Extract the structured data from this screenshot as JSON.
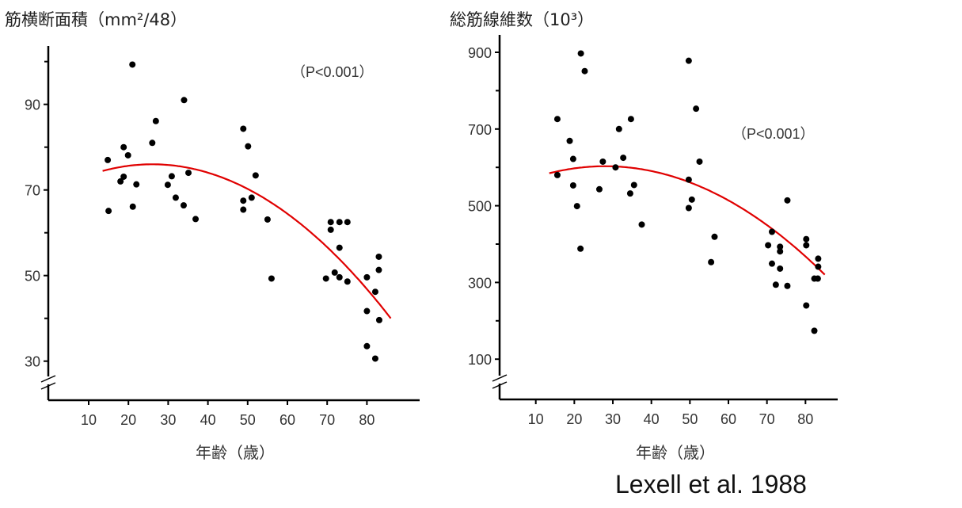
{
  "citation": "Lexell et al. 1988",
  "colors": {
    "points": "#000000",
    "fit": "#e00000",
    "axis": "#000000"
  },
  "chart_data": [
    {
      "type": "scatter",
      "title": "筋横断面積（mm²/48）",
      "xlabel": "年齢（歳）",
      "ylabel": "筋横断面積（mm²/48）",
      "annotation": "（P<0.001）",
      "xlim": [
        0,
        88
      ],
      "ylim": [
        25,
        102
      ],
      "x_ticks": [
        10,
        20,
        30,
        40,
        50,
        60,
        70,
        80
      ],
      "y_ticks": [
        30,
        50,
        70,
        90
      ],
      "y_minor_ticks": [
        40,
        60,
        80,
        100
      ],
      "axis_break": true,
      "grid": false,
      "points": [
        [
          14.8,
          77.0
        ],
        [
          15,
          65.1
        ],
        [
          18.8,
          80
        ],
        [
          19.9,
          78.1
        ],
        [
          18,
          72
        ],
        [
          18.8,
          73.1
        ],
        [
          21,
          99.3
        ],
        [
          21.1,
          66.1
        ],
        [
          22,
          71.3
        ],
        [
          26,
          81
        ],
        [
          26.9,
          86.1
        ],
        [
          29.9,
          71.2
        ],
        [
          30.9,
          73.2
        ],
        [
          31.9,
          68.2
        ],
        [
          34,
          91
        ],
        [
          33.9,
          66.4
        ],
        [
          35.1,
          74
        ],
        [
          36.9,
          63.2
        ],
        [
          48.9,
          84.3
        ],
        [
          50.1,
          80.2
        ],
        [
          52,
          73.4
        ],
        [
          48.9,
          67.5
        ],
        [
          48.9,
          65.4
        ],
        [
          51,
          68.2
        ],
        [
          55,
          63.1
        ],
        [
          56,
          49.3
        ],
        [
          69.7,
          49.3
        ],
        [
          70.9,
          62.5
        ],
        [
          70.9,
          60.7
        ],
        [
          73.1,
          62.5
        ],
        [
          75.1,
          62.5
        ],
        [
          73.1,
          56.5
        ],
        [
          71.9,
          50.7
        ],
        [
          73.1,
          49.6
        ],
        [
          75.1,
          48.6
        ],
        [
          80,
          49.6
        ],
        [
          80,
          41.7
        ],
        [
          80,
          33.5
        ],
        [
          82.1,
          46.2
        ],
        [
          82.1,
          30.6
        ],
        [
          83,
          54.4
        ],
        [
          83,
          51.3
        ],
        [
          83.1,
          39.6
        ]
      ],
      "fit": {
        "type": "quadratic",
        "vertex_age": 26,
        "vertex_value": 76,
        "k": 0.01,
        "x_range": [
          13.5,
          86
        ]
      }
    },
    {
      "type": "scatter",
      "title": "総筋線維数（10³）",
      "xlabel": "年齢（歳）",
      "ylabel": "総筋線維数（10³）",
      "annotation": "（P<0.001）",
      "xlim": [
        0,
        88
      ],
      "ylim": [
        20,
        940
      ],
      "x_ticks": [
        10,
        20,
        30,
        40,
        50,
        60,
        70,
        80
      ],
      "y_ticks": [
        100,
        300,
        500,
        700,
        900
      ],
      "y_minor_ticks": [
        200,
        400,
        600,
        800
      ],
      "axis_break": true,
      "grid": false,
      "points": [
        [
          15.6,
          726
        ],
        [
          15.6,
          580
        ],
        [
          18.8,
          669
        ],
        [
          19.7,
          622
        ],
        [
          19.7,
          553
        ],
        [
          20.7,
          499
        ],
        [
          21.6,
          388
        ],
        [
          21.7,
          897
        ],
        [
          22.7,
          851
        ],
        [
          26.5,
          543
        ],
        [
          27.4,
          615
        ],
        [
          30.7,
          600
        ],
        [
          31.6,
          700
        ],
        [
          32.7,
          625
        ],
        [
          34.7,
          726
        ],
        [
          34.5,
          532
        ],
        [
          35.5,
          554
        ],
        [
          37.5,
          451
        ],
        [
          49.7,
          878
        ],
        [
          49.7,
          568
        ],
        [
          50.5,
          516
        ],
        [
          49.7,
          494
        ],
        [
          51.6,
          753
        ],
        [
          52.5,
          615
        ],
        [
          55.5,
          353
        ],
        [
          56.4,
          419
        ],
        [
          70.3,
          397
        ],
        [
          71.3,
          432
        ],
        [
          71.3,
          349
        ],
        [
          72.3,
          294
        ],
        [
          73.4,
          393
        ],
        [
          73.4,
          381
        ],
        [
          73.4,
          336
        ],
        [
          75.3,
          514
        ],
        [
          75.3,
          291
        ],
        [
          80.2,
          413
        ],
        [
          80.2,
          397
        ],
        [
          80.2,
          240
        ],
        [
          82.3,
          174
        ],
        [
          82.3,
          310
        ],
        [
          83.2,
          310
        ],
        [
          83.3,
          362
        ],
        [
          83.3,
          341
        ]
      ],
      "fit": {
        "type": "quadratic",
        "vertex_age": 28,
        "vertex_value": 603,
        "k": 0.087,
        "x_range": [
          13.5,
          85
        ]
      }
    }
  ]
}
